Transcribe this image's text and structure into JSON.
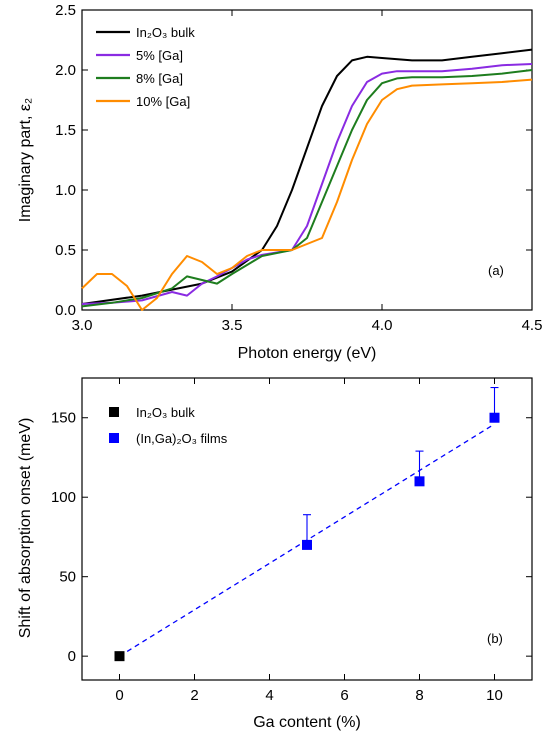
{
  "chart_data": [
    {
      "type": "line",
      "panel_label": "(a)",
      "xlabel": "Photon energy (eV)",
      "ylabel": "Imaginary part, ε₂",
      "xlim": [
        3.0,
        4.5
      ],
      "ylim": [
        0.0,
        2.5
      ],
      "xticks": [
        "3.0",
        "3.5",
        "4.0",
        "4.5"
      ],
      "yticks": [
        "0.0",
        "0.5",
        "1.0",
        "1.5",
        "2.0",
        "2.5"
      ],
      "legend_position": "top-left",
      "series": [
        {
          "name": "In₂O₃ bulk",
          "color": "#000000",
          "x": [
            3.0,
            3.2,
            3.4,
            3.5,
            3.6,
            3.65,
            3.7,
            3.75,
            3.8,
            3.85,
            3.9,
            3.95,
            4.0,
            4.1,
            4.2,
            4.3,
            4.4,
            4.5
          ],
          "y": [
            0.05,
            0.12,
            0.22,
            0.32,
            0.5,
            0.7,
            1.0,
            1.35,
            1.7,
            1.95,
            2.08,
            2.11,
            2.1,
            2.08,
            2.08,
            2.11,
            2.14,
            2.17
          ]
        },
        {
          "name": "5% [Ga]",
          "color": "#8a2be2",
          "x": [
            3.0,
            3.1,
            3.2,
            3.3,
            3.35,
            3.4,
            3.45,
            3.5,
            3.55,
            3.6,
            3.7,
            3.75,
            3.8,
            3.85,
            3.9,
            3.95,
            4.0,
            4.05,
            4.1,
            4.2,
            4.3,
            4.4,
            4.5
          ],
          "y": [
            0.05,
            0.06,
            0.08,
            0.15,
            0.12,
            0.22,
            0.28,
            0.35,
            0.42,
            0.46,
            0.5,
            0.7,
            1.05,
            1.4,
            1.7,
            1.9,
            1.97,
            1.99,
            1.99,
            1.99,
            2.01,
            2.04,
            2.05
          ]
        },
        {
          "name": "8% [Ga]",
          "color": "#1e7d1e",
          "x": [
            3.0,
            3.1,
            3.2,
            3.3,
            3.35,
            3.4,
            3.45,
            3.5,
            3.6,
            3.7,
            3.75,
            3.8,
            3.85,
            3.9,
            3.95,
            4.0,
            4.05,
            4.1,
            4.2,
            4.3,
            4.4,
            4.5
          ],
          "y": [
            0.03,
            0.06,
            0.1,
            0.18,
            0.28,
            0.25,
            0.22,
            0.3,
            0.45,
            0.5,
            0.6,
            0.9,
            1.2,
            1.5,
            1.75,
            1.89,
            1.93,
            1.94,
            1.94,
            1.95,
            1.97,
            2.0
          ]
        },
        {
          "name": "10% [Ga]",
          "color": "#ff8c00",
          "x": [
            3.0,
            3.05,
            3.1,
            3.15,
            3.2,
            3.25,
            3.3,
            3.35,
            3.4,
            3.45,
            3.5,
            3.55,
            3.6,
            3.7,
            3.8,
            3.85,
            3.9,
            3.95,
            4.0,
            4.05,
            4.1,
            4.2,
            4.3,
            4.4,
            4.5
          ],
          "y": [
            0.18,
            0.3,
            0.3,
            0.2,
            0.0,
            0.1,
            0.3,
            0.45,
            0.4,
            0.3,
            0.35,
            0.45,
            0.5,
            0.5,
            0.6,
            0.9,
            1.25,
            1.55,
            1.75,
            1.84,
            1.87,
            1.88,
            1.89,
            1.9,
            1.92
          ]
        }
      ]
    },
    {
      "type": "scatter",
      "panel_label": "(b)",
      "xlabel": "Ga content (%)",
      "ylabel": "Shift of absorption onset (meV)",
      "xlim": [
        -1.0,
        11.0
      ],
      "ylim": [
        -15,
        175
      ],
      "xticks": [
        "0",
        "2",
        "4",
        "6",
        "8",
        "10"
      ],
      "yticks": [
        "0",
        "50",
        "100",
        "150"
      ],
      "legend_position": "top-left",
      "series": [
        {
          "name": "In₂O₃ bulk",
          "color": "#000000",
          "x": [
            0
          ],
          "y": [
            0
          ]
        },
        {
          "name": "(In,Ga)₂O₃ films",
          "color": "#0000ff",
          "x": [
            5,
            8,
            10
          ],
          "y": [
            70,
            110,
            150
          ],
          "yerr_upper": [
            19,
            19,
            19
          ]
        }
      ],
      "fit_line": {
        "color": "#0000ff",
        "style": "dashed",
        "x": [
          0,
          10
        ],
        "y": [
          0,
          146
        ]
      }
    }
  ]
}
